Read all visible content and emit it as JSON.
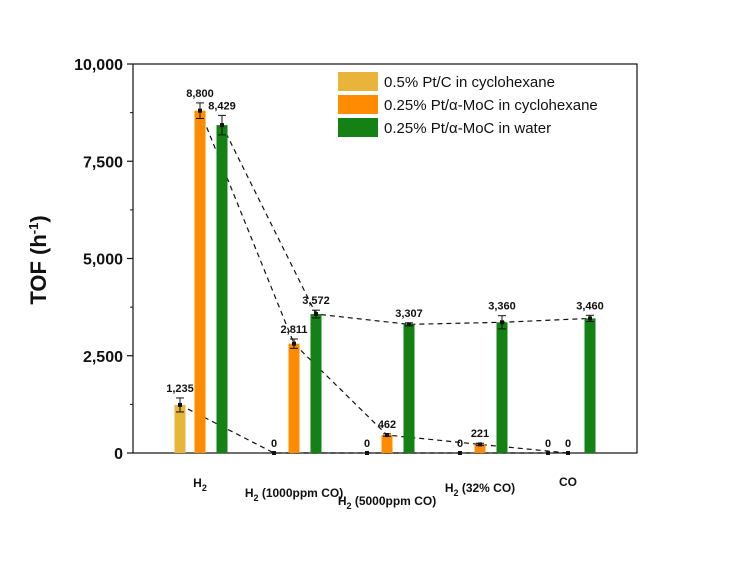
{
  "chart_data": {
    "type": "bar",
    "ylabel": "TOF (h",
    "ylabel_sup": "-1",
    "ylabel_close": ")",
    "ylim": [
      0,
      10000
    ],
    "yticks": [
      0,
      2500,
      5000,
      7500,
      10000
    ],
    "ytick_labels": [
      "0",
      "2,500",
      "5,000",
      "7,500",
      "10,000"
    ],
    "categories": [
      {
        "main": "H",
        "sub": "2",
        "rest": ""
      },
      {
        "main": "H",
        "sub": "2",
        "rest": " (1000ppm CO)"
      },
      {
        "main": "H",
        "sub": "2",
        "rest": " (5000ppm CO)"
      },
      {
        "main": "H",
        "sub": "2",
        "rest": " (32% CO)"
      },
      {
        "main": "CO",
        "sub": "",
        "rest": ""
      }
    ],
    "series": [
      {
        "name": "0.5% Pt/C in cyclohexane",
        "color": "#e8b53a",
        "values": [
          1235,
          0,
          0,
          0,
          0
        ],
        "errors": [
          180,
          0,
          0,
          0,
          0
        ],
        "labels": [
          "1,235",
          "0",
          "0",
          "0",
          "0"
        ]
      },
      {
        "name": "0.25% Pt/α-MoC in cyclohexane",
        "color": "#ff8c00",
        "values": [
          8800,
          2811,
          462,
          221,
          0
        ],
        "errors": [
          200,
          120,
          30,
          30,
          0
        ],
        "labels": [
          "8,800",
          "2,811",
          "462",
          "221",
          "0"
        ]
      },
      {
        "name": "0.25% Pt/α-MoC in water",
        "color": "#138113",
        "values": [
          8429,
          3572,
          3307,
          3360,
          3460
        ],
        "errors": [
          250,
          100,
          40,
          170,
          80
        ],
        "labels": [
          "8,429",
          "3,572",
          "3,307",
          "3,360",
          "3,460"
        ]
      }
    ],
    "legend_position": "top-right",
    "grid": false
  }
}
